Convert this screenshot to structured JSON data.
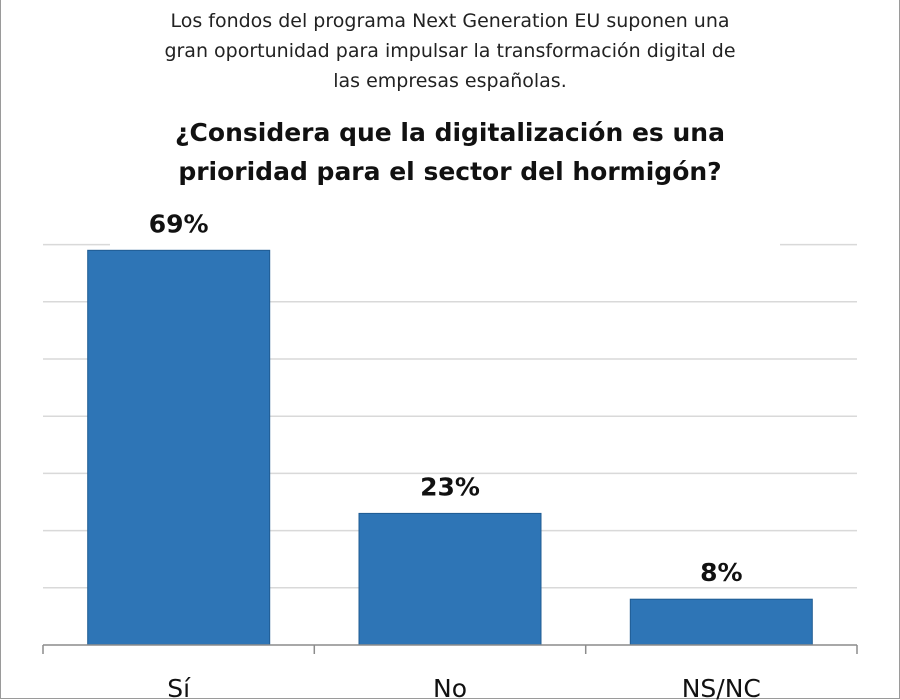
{
  "chart_data": {
    "type": "bar",
    "subtitle_lines": [
      "Los fondos del programa Next Generation EU suponen una",
      "gran oportunidad para impulsar la transformación digital de",
      "las empresas españolas."
    ],
    "title_lines": [
      "¿Considera que la digitalización es una",
      "prioridad para el sector del hormigón?"
    ],
    "categories": [
      "Sí",
      "No",
      "NS/NC"
    ],
    "values": [
      69,
      23,
      8
    ],
    "value_labels": [
      "69%",
      "23%",
      "8%"
    ],
    "ylim": [
      0,
      70
    ],
    "y_grid_step": 10,
    "grid": true,
    "xlabel": "",
    "ylabel": "",
    "colors": {
      "bar": "#2e75b6",
      "grid": "#d9d9d9",
      "axis": "#8c8c8c"
    }
  }
}
